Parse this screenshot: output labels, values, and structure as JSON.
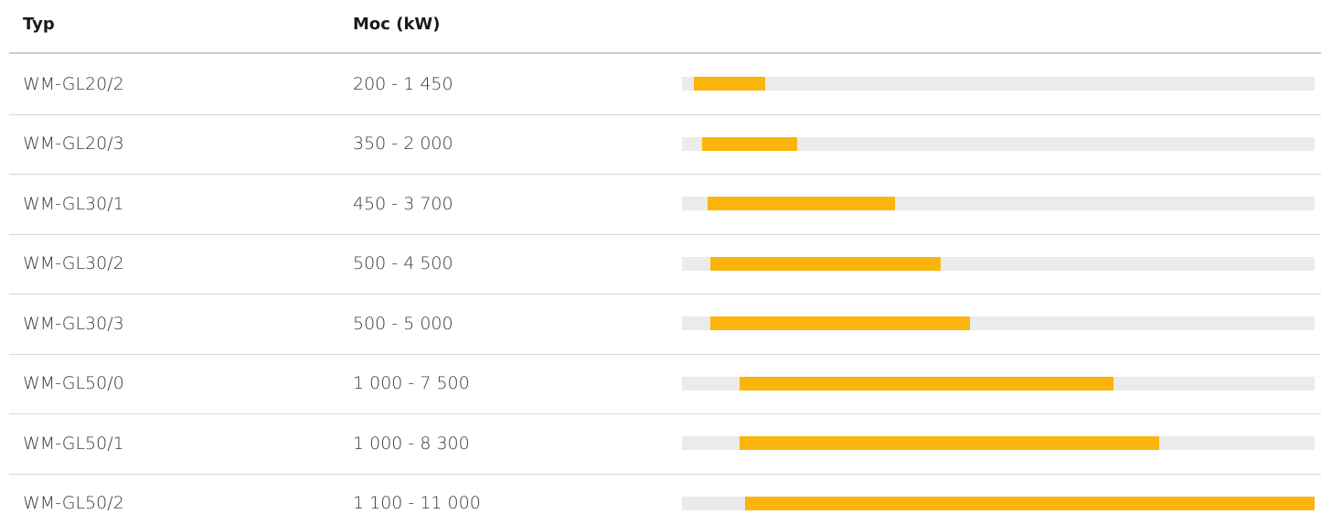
{
  "table": {
    "header": [
      "Typ",
      "Moc (kW)"
    ],
    "rows": [
      [
        "WM-GL20/2",
        "200 - 1 450"
      ],
      [
        "WM-GL20/3",
        "350 - 2 000"
      ],
      [
        "WM-GL30/1",
        "450 - 3 700"
      ],
      [
        "WM-GL30/2",
        "500 - 4 500"
      ],
      [
        "WM-GL30/3",
        "500 - 5 000"
      ],
      [
        "WM-GL50/0",
        "1 000 - 7 500"
      ],
      [
        "WM-GL50/1",
        "1 000 - 8 300"
      ],
      [
        "WM-GL50/2",
        "1 100 - 11 000"
      ]
    ]
  }
}
